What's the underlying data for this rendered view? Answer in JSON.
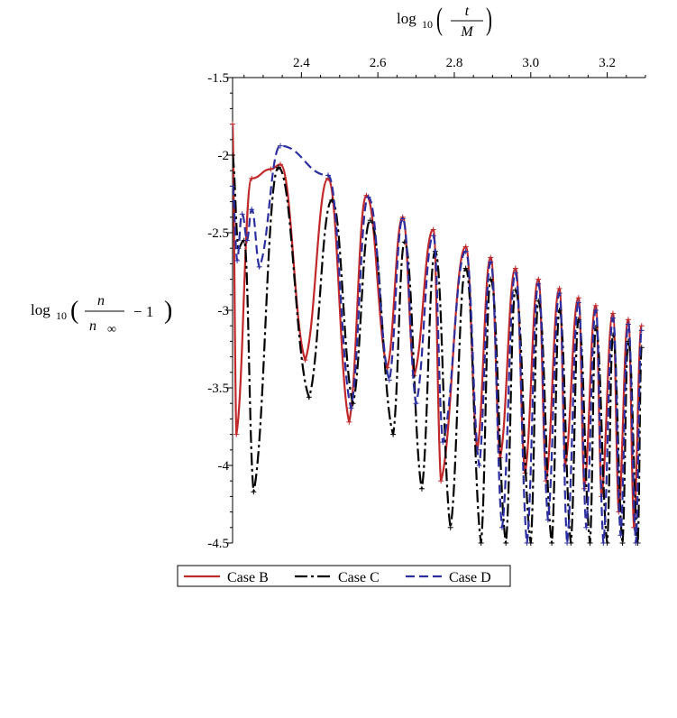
{
  "chart_data": {
    "type": "line",
    "x_axis": {
      "label": "log10(t/M)",
      "label_parts": {
        "fn": "log",
        "sub": "10",
        "num": "t",
        "den": "M"
      },
      "position": "top",
      "range": [
        2.22,
        3.3
      ],
      "ticks": [
        2.4,
        2.6,
        2.8,
        3.0,
        3.2
      ],
      "tick_labels": [
        "2.4",
        "2.6",
        "2.8",
        "3.0",
        "3.2"
      ]
    },
    "y_axis": {
      "label": "log10(n/n∞ − 1)",
      "label_parts": {
        "fn": "log",
        "sub": "10",
        "num": "n",
        "den_base": "n",
        "den_sub": "∞",
        "minus": "− 1"
      },
      "range": [
        -4.5,
        -1.5
      ],
      "ticks": [
        -1.5,
        -2,
        -2.5,
        -3,
        -3.5,
        -4,
        -4.5
      ],
      "tick_labels": [
        "-1.5",
        "-2",
        "-2.5",
        "-3",
        "-3.5",
        "-4",
        "-4.5"
      ]
    },
    "grid": false,
    "legend_position": "bottom-left",
    "series": [
      {
        "name": "Case B",
        "color": "#c0282a",
        "dash": "solid",
        "marker": "cross",
        "start_point": [
          2.22,
          -1.8
        ],
        "peaks": [
          [
            2.27,
            -2.15
          ],
          [
            2.32,
            -2.09
          ],
          [
            2.345,
            -2.06
          ],
          [
            2.47,
            -2.15
          ],
          [
            2.57,
            -2.26
          ],
          [
            2.665,
            -2.4
          ],
          [
            2.745,
            -2.48
          ],
          [
            2.83,
            -2.59
          ],
          [
            2.895,
            -2.66
          ],
          [
            2.96,
            -2.73
          ],
          [
            3.02,
            -2.8
          ],
          [
            3.075,
            -2.86
          ],
          [
            3.125,
            -2.92
          ],
          [
            3.17,
            -2.97
          ],
          [
            3.215,
            -3.02
          ],
          [
            3.255,
            -3.06
          ],
          [
            3.29,
            -3.1
          ]
        ],
        "troughs": [
          [
            2.23,
            -3.8
          ],
          [
            2.41,
            -3.32
          ],
          [
            2.525,
            -3.72
          ],
          [
            2.625,
            -3.37
          ],
          [
            2.695,
            -3.42
          ],
          [
            2.765,
            -4.1
          ],
          [
            2.86,
            -3.9
          ],
          [
            2.92,
            -3.95
          ],
          [
            2.985,
            -4.05
          ],
          [
            3.04,
            -4.1
          ],
          [
            3.09,
            -4.0
          ],
          [
            3.14,
            -4.15
          ],
          [
            3.185,
            -4.2
          ],
          [
            3.23,
            -4.3
          ],
          [
            3.27,
            -4.4
          ]
        ]
      },
      {
        "name": "Case C",
        "color": "#000000",
        "dash": "dashdot",
        "marker": "cross",
        "start_point": [
          2.22,
          -2.0
        ],
        "peaks": [
          [
            2.25,
            -2.55
          ],
          [
            2.34,
            -2.08
          ],
          [
            2.48,
            -2.29
          ],
          [
            2.58,
            -2.42
          ],
          [
            2.67,
            -2.56
          ],
          [
            2.75,
            -2.62
          ],
          [
            2.83,
            -2.73
          ],
          [
            2.895,
            -2.8
          ],
          [
            2.96,
            -2.87
          ],
          [
            3.02,
            -2.94
          ],
          [
            3.075,
            -3.0
          ],
          [
            3.125,
            -3.06
          ],
          [
            3.17,
            -3.11
          ],
          [
            3.215,
            -3.16
          ],
          [
            3.255,
            -3.2
          ],
          [
            3.29,
            -3.24
          ]
        ],
        "troughs": [
          [
            2.235,
            -2.6
          ],
          [
            2.275,
            -4.17
          ],
          [
            2.42,
            -3.56
          ],
          [
            2.535,
            -3.6
          ],
          [
            2.64,
            -3.8
          ],
          [
            2.715,
            -4.15
          ],
          [
            2.79,
            -4.4
          ],
          [
            2.87,
            -4.5
          ],
          [
            2.935,
            -4.5
          ],
          [
            3.0,
            -4.5
          ],
          [
            3.055,
            -4.5
          ],
          [
            3.105,
            -4.5
          ],
          [
            3.155,
            -4.5
          ],
          [
            3.2,
            -4.5
          ],
          [
            3.24,
            -4.5
          ],
          [
            3.28,
            -4.5
          ]
        ]
      },
      {
        "name": "Case D",
        "color": "#2d2fa0",
        "dash": "dashed",
        "marker": "cross",
        "start_point": [
          2.22,
          -2.2
        ],
        "peaks": [
          [
            2.245,
            -2.38
          ],
          [
            2.27,
            -2.35
          ],
          [
            2.345,
            -1.94
          ],
          [
            2.47,
            -2.13
          ],
          [
            2.575,
            -2.27
          ],
          [
            2.665,
            -2.41
          ],
          [
            2.745,
            -2.52
          ],
          [
            2.83,
            -2.62
          ],
          [
            2.895,
            -2.69
          ],
          [
            2.96,
            -2.76
          ],
          [
            3.02,
            -2.83
          ],
          [
            3.075,
            -2.89
          ],
          [
            3.125,
            -2.95
          ],
          [
            3.17,
            -3.0
          ],
          [
            3.215,
            -3.05
          ],
          [
            3.255,
            -3.09
          ],
          [
            3.29,
            -3.13
          ]
        ],
        "troughs": [
          [
            2.232,
            -2.68
          ],
          [
            2.258,
            -2.55
          ],
          [
            2.29,
            -2.72
          ],
          [
            2.53,
            -3.63
          ],
          [
            2.63,
            -3.45
          ],
          [
            2.7,
            -3.6
          ],
          [
            2.77,
            -3.85
          ],
          [
            2.865,
            -4.0
          ],
          [
            2.925,
            -4.4
          ],
          [
            2.99,
            -4.5
          ],
          [
            3.045,
            -4.35
          ],
          [
            3.095,
            -4.5
          ],
          [
            3.145,
            -4.4
          ],
          [
            3.19,
            -4.5
          ],
          [
            3.235,
            -4.45
          ],
          [
            3.275,
            -4.5
          ]
        ]
      }
    ]
  },
  "legend": {
    "items": [
      {
        "label": "Case B"
      },
      {
        "label": "Case C"
      },
      {
        "label": "Case D"
      }
    ]
  }
}
